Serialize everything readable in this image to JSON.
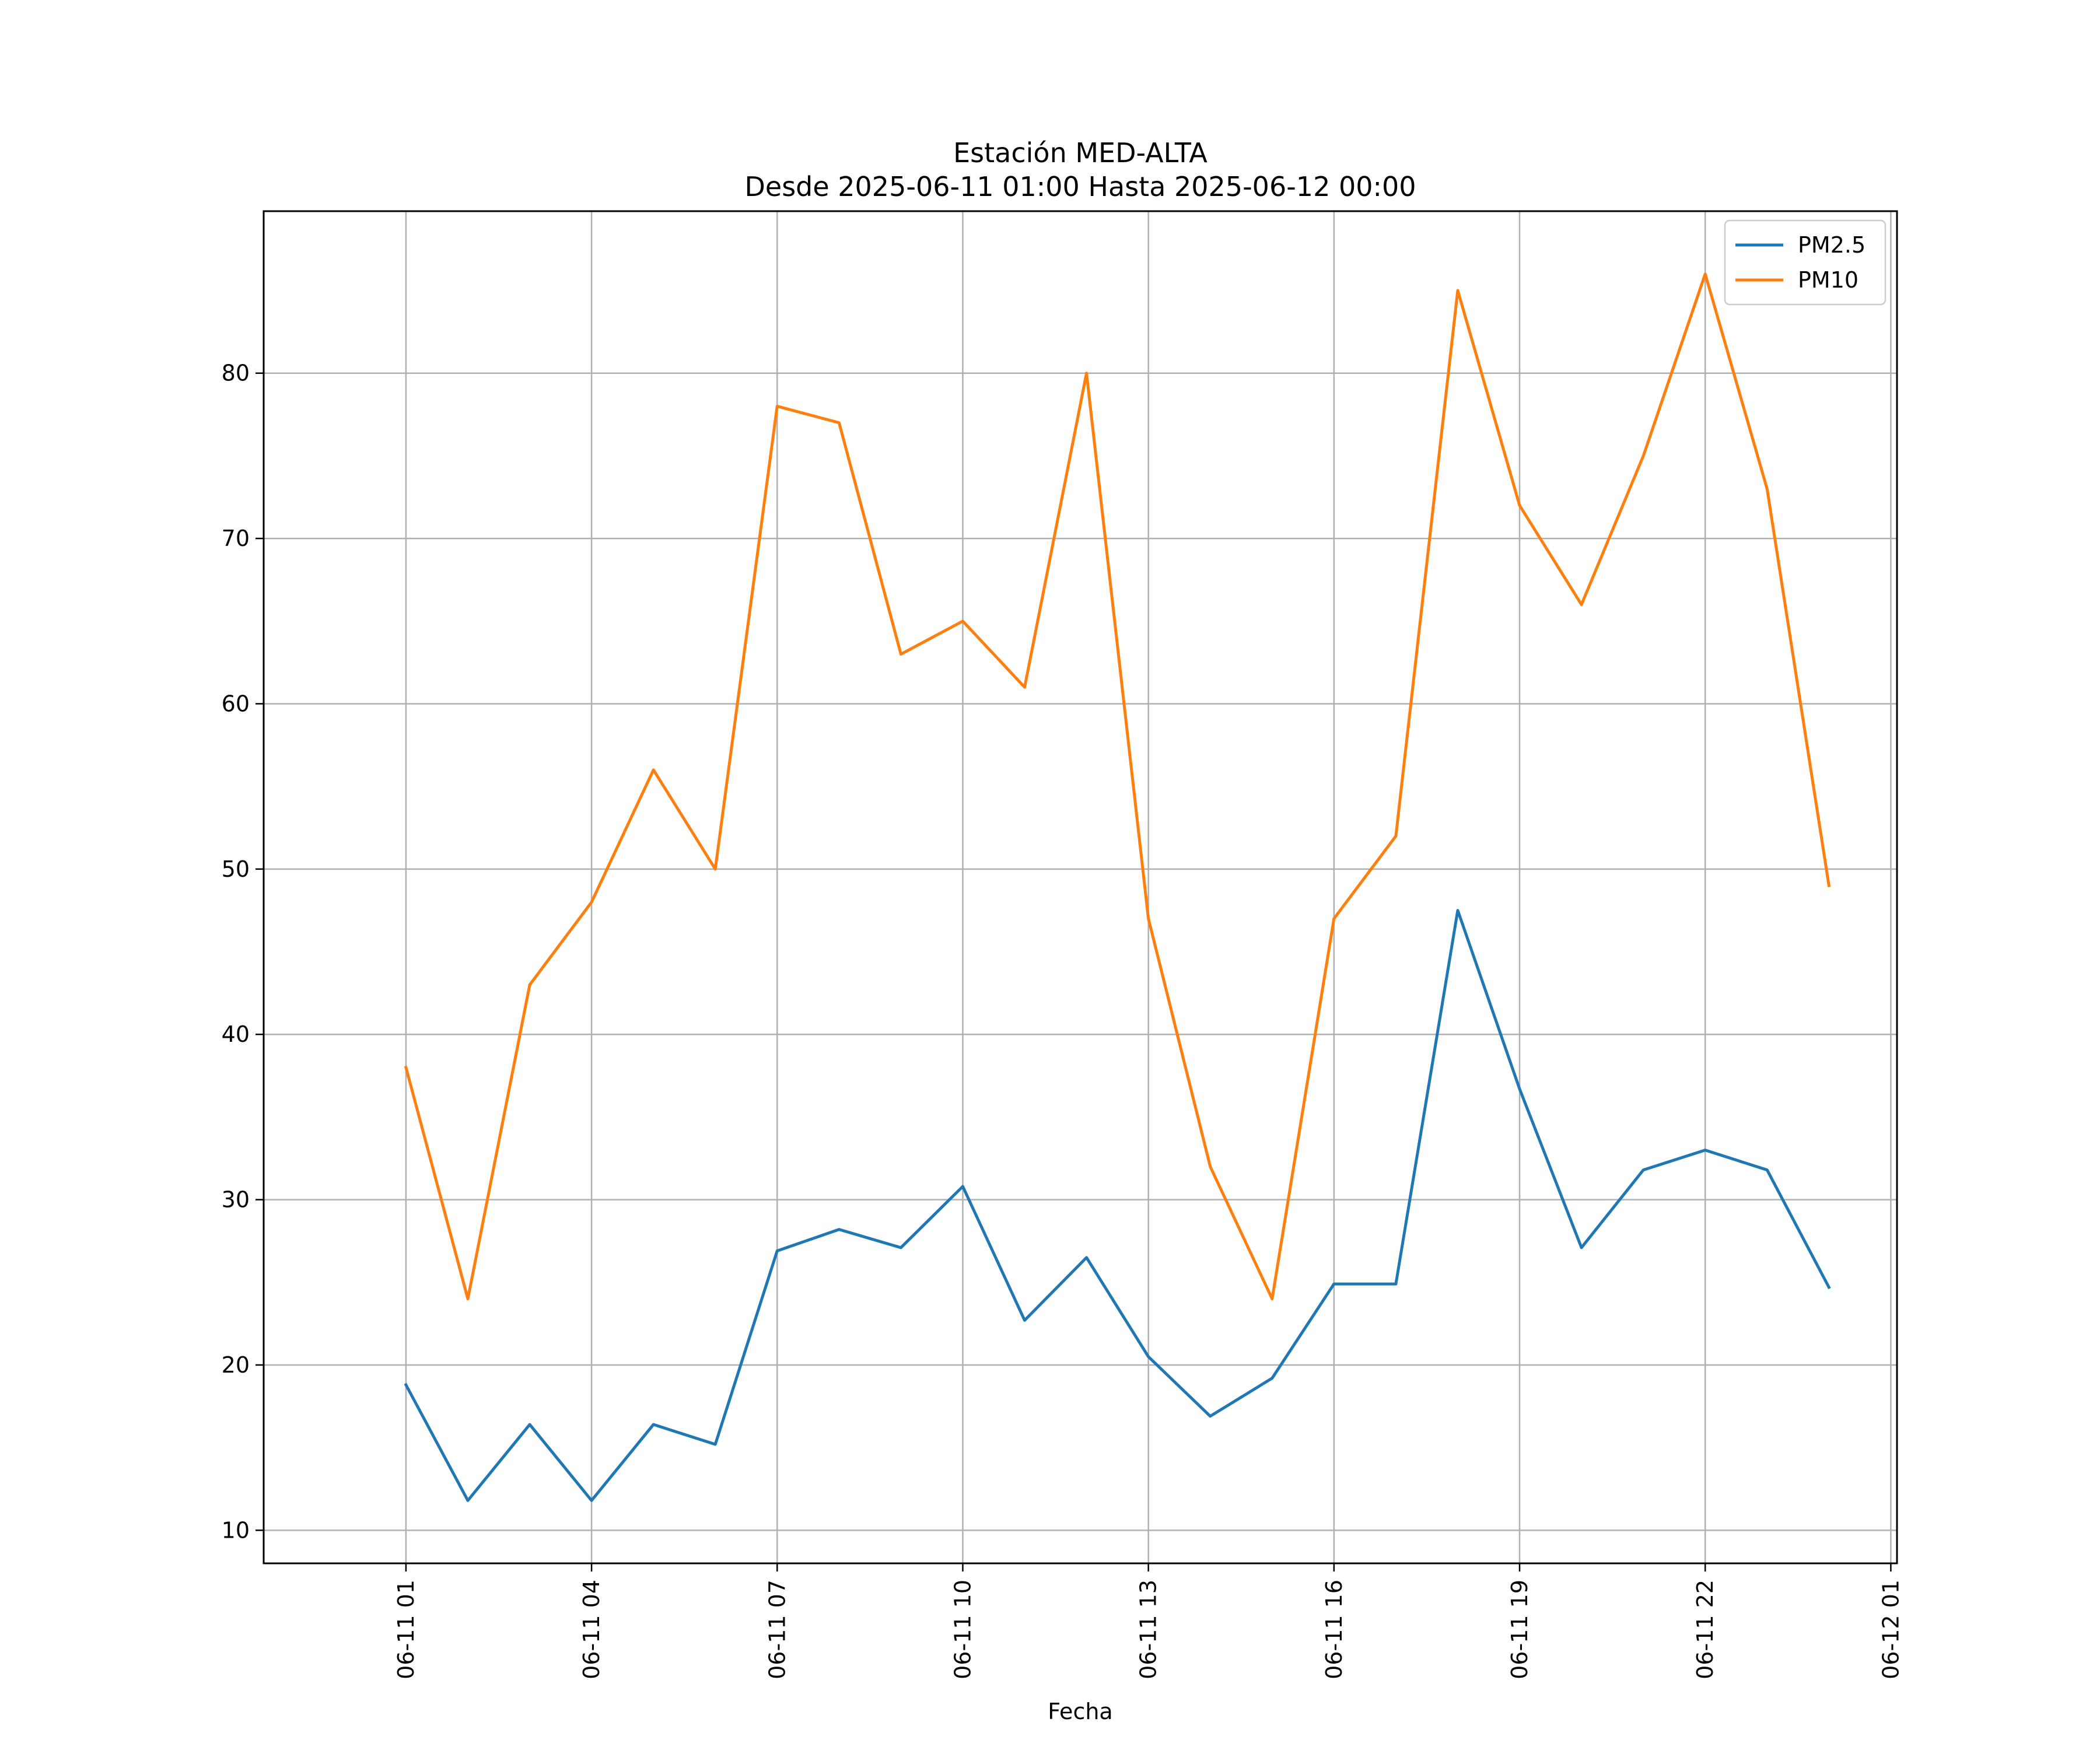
{
  "chart_data": {
    "type": "line",
    "title": "Estación MED-ALTA",
    "subtitle": "Desde 2025-06-11 01:00 Hasta 2025-06-12 00:00",
    "xlabel": "Fecha",
    "ylabel": "",
    "x": [
      "2025-06-11 01:00",
      "2025-06-11 02:00",
      "2025-06-11 03:00",
      "2025-06-11 04:00",
      "2025-06-11 05:00",
      "2025-06-11 06:00",
      "2025-06-11 07:00",
      "2025-06-11 08:00",
      "2025-06-11 09:00",
      "2025-06-11 10:00",
      "2025-06-11 11:00",
      "2025-06-11 12:00",
      "2025-06-11 13:00",
      "2025-06-11 14:00",
      "2025-06-11 15:00",
      "2025-06-11 16:00",
      "2025-06-11 17:00",
      "2025-06-11 18:00",
      "2025-06-11 19:00",
      "2025-06-11 20:00",
      "2025-06-11 21:00",
      "2025-06-11 22:00",
      "2025-06-11 23:00",
      "2025-06-12 00:00"
    ],
    "xticks": [
      {
        "x": "2025-06-11 01:00",
        "label": "06-11 01"
      },
      {
        "x": "2025-06-11 04:00",
        "label": "06-11 04"
      },
      {
        "x": "2025-06-11 07:00",
        "label": "06-11 07"
      },
      {
        "x": "2025-06-11 10:00",
        "label": "06-11 10"
      },
      {
        "x": "2025-06-11 13:00",
        "label": "06-11 13"
      },
      {
        "x": "2025-06-11 16:00",
        "label": "06-11 16"
      },
      {
        "x": "2025-06-11 19:00",
        "label": "06-11 19"
      },
      {
        "x": "2025-06-11 22:00",
        "label": "06-11 22"
      },
      {
        "x": "2025-06-12 01:00",
        "label": "06-12 01"
      }
    ],
    "xlim": [
      "2025-06-10 22:42",
      "2025-06-12 01:06"
    ],
    "yticks": [
      10,
      20,
      30,
      40,
      50,
      60,
      70,
      80
    ],
    "ylim": [
      8,
      89.8
    ],
    "grid": true,
    "legend_position": "top-right",
    "series": [
      {
        "name": "PM2.5",
        "color": "#1f77b4",
        "values": [
          18.8,
          11.8,
          16.4,
          11.8,
          16.4,
          15.2,
          26.9,
          28.2,
          27.1,
          30.8,
          22.7,
          26.5,
          20.5,
          16.9,
          19.2,
          24.9,
          24.9,
          47.5,
          36.7,
          27.1,
          31.8,
          33.0,
          31.8,
          24.7
        ]
      },
      {
        "name": "PM10",
        "color": "#ff7f0e",
        "values": [
          38,
          24,
          43,
          48,
          56,
          50,
          78,
          77,
          63,
          65,
          61,
          80,
          47,
          32,
          24,
          47,
          52,
          85,
          72,
          66,
          75,
          86,
          73,
          49
        ]
      }
    ]
  }
}
